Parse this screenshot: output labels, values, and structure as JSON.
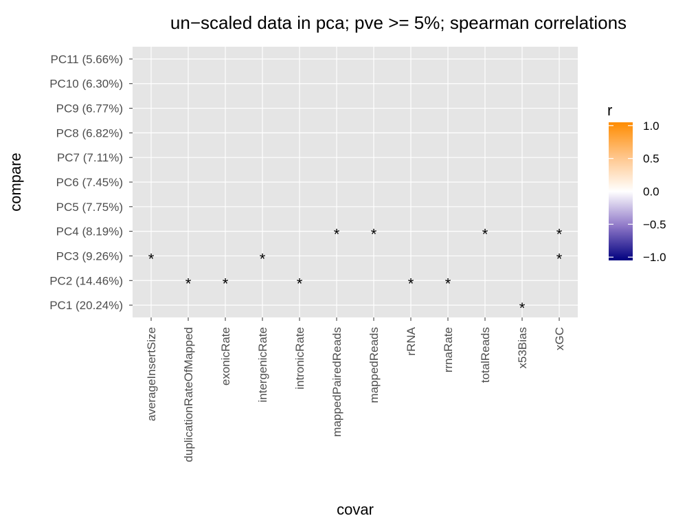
{
  "chart_data": {
    "type": "heatmap",
    "title": "un−scaled  data in pca; pve >= 5%; spearman correlations",
    "xlabel": "covar",
    "ylabel": "compare",
    "x_categories": [
      "averageInsertSize",
      "duplicationRateOfMapped",
      "exonicRate",
      "intergenicRate",
      "intronicRate",
      "mappedPairedReads",
      "mappedReads",
      "rRNA",
      "rrnaRate",
      "totalReads",
      "x53Bias",
      "xGC"
    ],
    "y_categories": [
      "PC1 (20.24%)",
      "PC2 (14.46%)",
      "PC3 (9.26%)",
      "PC4 (8.19%)",
      "PC5 (7.75%)",
      "PC6 (7.45%)",
      "PC7 (7.11%)",
      "PC8 (6.82%)",
      "PC9 (6.77%)",
      "PC10 (6.30%)",
      "PC11 (5.66%)"
    ],
    "significance_marker": "*",
    "significant_cells": [
      {
        "x": "x53Bias",
        "y": "PC1 (20.24%)"
      },
      {
        "x": "duplicationRateOfMapped",
        "y": "PC2 (14.46%)"
      },
      {
        "x": "exonicRate",
        "y": "PC2 (14.46%)"
      },
      {
        "x": "intronicRate",
        "y": "PC2 (14.46%)"
      },
      {
        "x": "rRNA",
        "y": "PC2 (14.46%)"
      },
      {
        "x": "rrnaRate",
        "y": "PC2 (14.46%)"
      },
      {
        "x": "averageInsertSize",
        "y": "PC3 (9.26%)"
      },
      {
        "x": "intergenicRate",
        "y": "PC3 (9.26%)"
      },
      {
        "x": "xGC",
        "y": "PC3 (9.26%)"
      },
      {
        "x": "mappedPairedReads",
        "y": "PC4 (8.19%)"
      },
      {
        "x": "mappedReads",
        "y": "PC4 (8.19%)"
      },
      {
        "x": "totalReads",
        "y": "PC4 (8.19%)"
      },
      {
        "x": "xGC",
        "y": "PC4 (8.19%)"
      }
    ],
    "panel_background": "#e5e5e5",
    "grid": true,
    "legend": {
      "title": "r",
      "position": "right",
      "ticks": [
        "1.0",
        "0.5",
        "0.0",
        "−0.5",
        "−1.0"
      ],
      "tick_values": [
        1.0,
        0.5,
        0.0,
        -0.5,
        -1.0
      ],
      "range": [
        -1.05,
        1.05
      ],
      "colors": {
        "high": "#ff8c00",
        "mid": "#ffffff",
        "low": "#00007f"
      }
    }
  }
}
